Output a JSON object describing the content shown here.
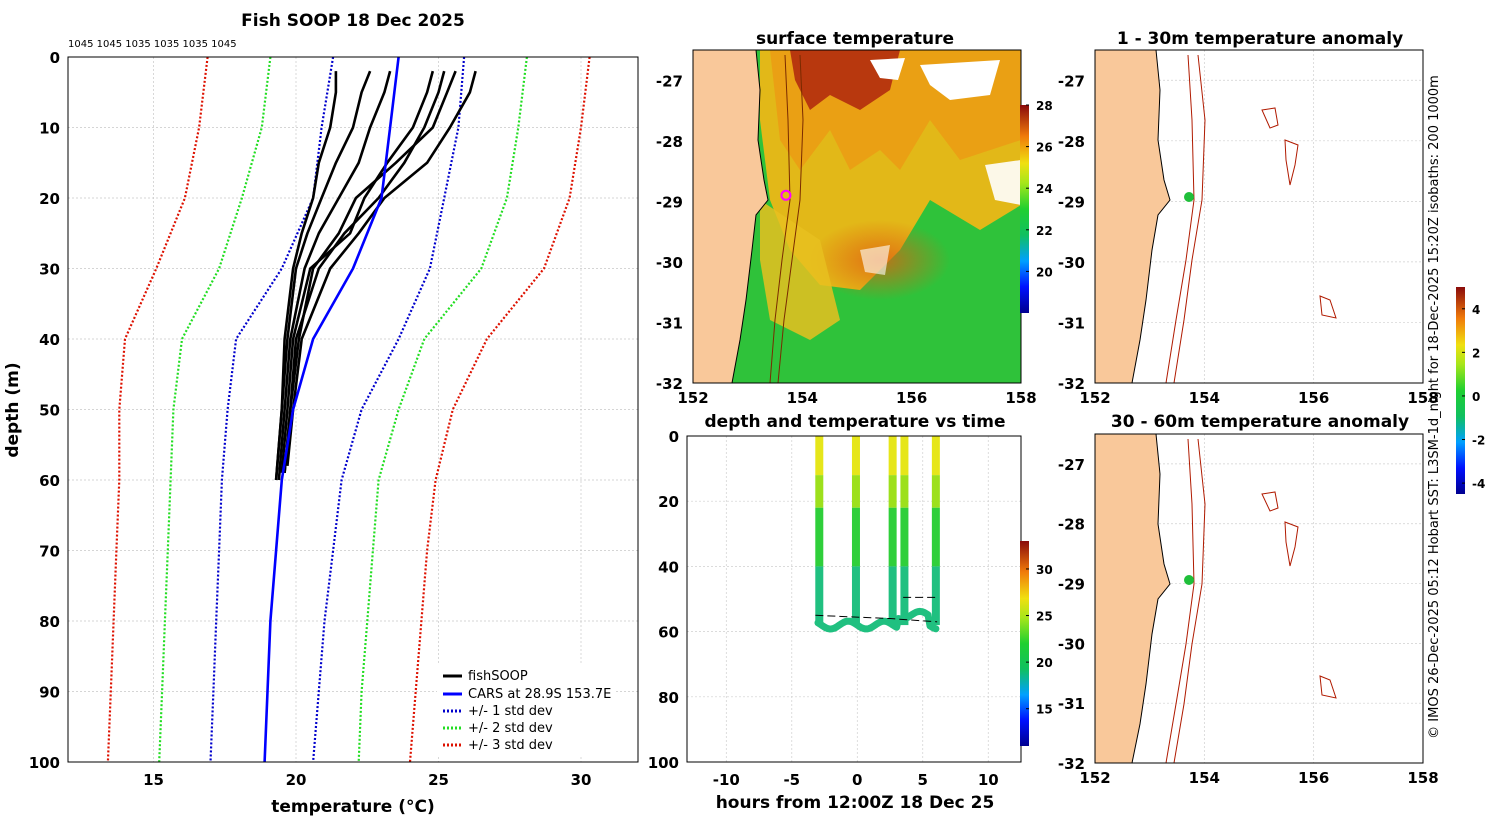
{
  "chart_data": [
    {
      "type": "line",
      "title": "Fish SOOP 18 Dec 2025",
      "top_annotation": "1045 1045 1035 1035 1035 1045",
      "xlabel": "temperature (°C)",
      "ylabel": "depth (m)",
      "xlim": [
        12,
        32
      ],
      "ylim": [
        100,
        0
      ],
      "xticks": [
        "15",
        "20",
        "25",
        "30"
      ],
      "yticks": [
        "0",
        "10",
        "20",
        "30",
        "40",
        "50",
        "60",
        "70",
        "80",
        "90",
        "100"
      ],
      "legend": [
        "fishSOOP",
        "CARS at 28.9S 153.7E",
        "+/- 1 std dev",
        "+/- 2 std dev",
        "+/- 3 std dev"
      ],
      "cars_mean": {
        "depth": [
          0,
          10,
          20,
          30,
          40,
          50,
          60,
          70,
          80,
          90,
          100
        ],
        "temp": [
          23.6,
          23.3,
          23.0,
          22.0,
          20.6,
          19.9,
          19.5,
          19.3,
          19.1,
          19.0,
          18.9
        ]
      },
      "std1": {
        "upper": [
          25.9,
          25.7,
          25.2,
          24.7,
          23.6,
          22.3,
          21.6,
          21.3,
          21.0,
          20.8,
          20.6
        ],
        "lower": [
          21.3,
          20.9,
          20.6,
          19.5,
          17.9,
          17.6,
          17.4,
          17.3,
          17.2,
          17.1,
          17.0
        ]
      },
      "std2": {
        "upper": [
          28.1,
          27.8,
          27.4,
          26.5,
          24.5,
          23.6,
          22.9,
          22.7,
          22.5,
          22.3,
          22.2
        ],
        "lower": [
          19.1,
          18.8,
          18.1,
          17.3,
          16.0,
          15.7,
          15.6,
          15.5,
          15.4,
          15.3,
          15.2
        ]
      },
      "std3": {
        "upper": [
          30.3,
          30.0,
          29.6,
          28.7,
          26.7,
          25.5,
          24.9,
          24.6,
          24.4,
          24.2,
          24.0
        ],
        "lower": [
          16.9,
          16.6,
          16.1,
          15.1,
          14.0,
          13.8,
          13.8,
          13.7,
          13.6,
          13.5,
          13.4
        ]
      },
      "fish_profiles": [
        {
          "depth": [
            2,
            5,
            10,
            15,
            20,
            25,
            30,
            40,
            50,
            58
          ],
          "temp": [
            26.3,
            26.1,
            25.4,
            24.6,
            23.1,
            22.2,
            21.2,
            20.2,
            19.9,
            19.7
          ]
        },
        {
          "depth": [
            2,
            5,
            10,
            15,
            20,
            25,
            30,
            40,
            50,
            59
          ],
          "temp": [
            25.6,
            25.3,
            24.8,
            23.5,
            22.1,
            21.5,
            20.6,
            20.1,
            19.8,
            19.6
          ]
        },
        {
          "depth": [
            2,
            5,
            10,
            15,
            20,
            25,
            30,
            40,
            50,
            59
          ],
          "temp": [
            24.8,
            24.6,
            24.1,
            23.2,
            22.4,
            21.9,
            20.5,
            19.9,
            19.7,
            19.5
          ]
        },
        {
          "depth": [
            2,
            5,
            10,
            15,
            20,
            25,
            30,
            40,
            50,
            60
          ],
          "temp": [
            23.3,
            23.1,
            22.6,
            22.2,
            21.5,
            20.8,
            20.3,
            19.8,
            19.6,
            19.4
          ]
        },
        {
          "depth": [
            2,
            5,
            10,
            15,
            20,
            25,
            30,
            40,
            50,
            60
          ],
          "temp": [
            22.6,
            22.3,
            22.0,
            21.4,
            20.9,
            20.4,
            20.0,
            19.7,
            19.5,
            19.3
          ]
        },
        {
          "depth": [
            2,
            5,
            10,
            15,
            20,
            25,
            30,
            40,
            50,
            60
          ],
          "temp": [
            21.4,
            21.4,
            21.2,
            20.8,
            20.6,
            20.2,
            19.9,
            19.6,
            19.5,
            19.3
          ]
        },
        {
          "depth": [
            2,
            5,
            10,
            15,
            20,
            25,
            30,
            40,
            50,
            59
          ],
          "temp": [
            25.2,
            25.0,
            24.5,
            23.8,
            22.9,
            21.7,
            20.8,
            20.0,
            19.8,
            19.6
          ]
        }
      ]
    },
    {
      "type": "heatmap",
      "title": "surface temperature",
      "xticks": [
        "152",
        "154",
        "156",
        "158"
      ],
      "yticks": [
        "-27",
        "-28",
        "-29",
        "-30",
        "-31",
        "-32"
      ],
      "xlim": [
        152,
        158
      ],
      "ylim": [
        -32,
        -26.5
      ],
      "colorbar": {
        "min": 18,
        "max": 28,
        "ticks": [
          "20",
          "22",
          "24",
          "26",
          "28"
        ]
      },
      "marker": {
        "lon": 153.7,
        "lat": -28.9
      }
    },
    {
      "type": "scatter",
      "title": "depth and temperature vs time",
      "xlabel": "hours from 12:00Z 18 Dec 25",
      "xlim": [
        -13,
        12.5
      ],
      "ylim": [
        100,
        0
      ],
      "xticks": [
        "-10",
        "-5",
        "0",
        "5",
        "10"
      ],
      "yticks": [
        "0",
        "20",
        "40",
        "60",
        "80",
        "100"
      ],
      "colorbar": {
        "min": 11,
        "max": 33,
        "ticks": [
          "15",
          "20",
          "25",
          "30"
        ]
      },
      "casts_hours": [
        -2.9,
        -0.1,
        2.7,
        3.6,
        6.0
      ],
      "bottom_depth": 58
    },
    {
      "type": "heatmap",
      "title": "1 - 30m temperature anomaly",
      "xticks": [
        "152",
        "154",
        "156",
        "158"
      ],
      "yticks": [
        "-27",
        "-28",
        "-29",
        "-30",
        "-31",
        "-32"
      ],
      "xlim": [
        152,
        158
      ],
      "ylim": [
        -32,
        -26.5
      ]
    },
    {
      "type": "heatmap",
      "title": "30 - 60m temperature anomaly",
      "xticks": [
        "152",
        "154",
        "156",
        "158"
      ],
      "yticks": [
        "-27",
        "-28",
        "-29",
        "-30",
        "-31",
        "-32"
      ],
      "xlim": [
        152,
        158
      ],
      "ylim": [
        -32,
        -26.5
      ],
      "colorbar": {
        "min": -4.5,
        "max": 5,
        "ticks": [
          "4",
          "2",
          "0",
          "-2",
          "-4"
        ]
      }
    }
  ],
  "credit": "© IMOS 26-Dec-2025 05:12 Hobart SST: L3SM-1d_night for 18-Dec-2025 15:20Z isobaths: 200  1000m",
  "colors": {
    "fish": "#000000",
    "cars": "#0000ff",
    "std1": "#0000cc",
    "std2": "#22dd22",
    "std3": "#dd1100",
    "land": "#f9c89a"
  }
}
